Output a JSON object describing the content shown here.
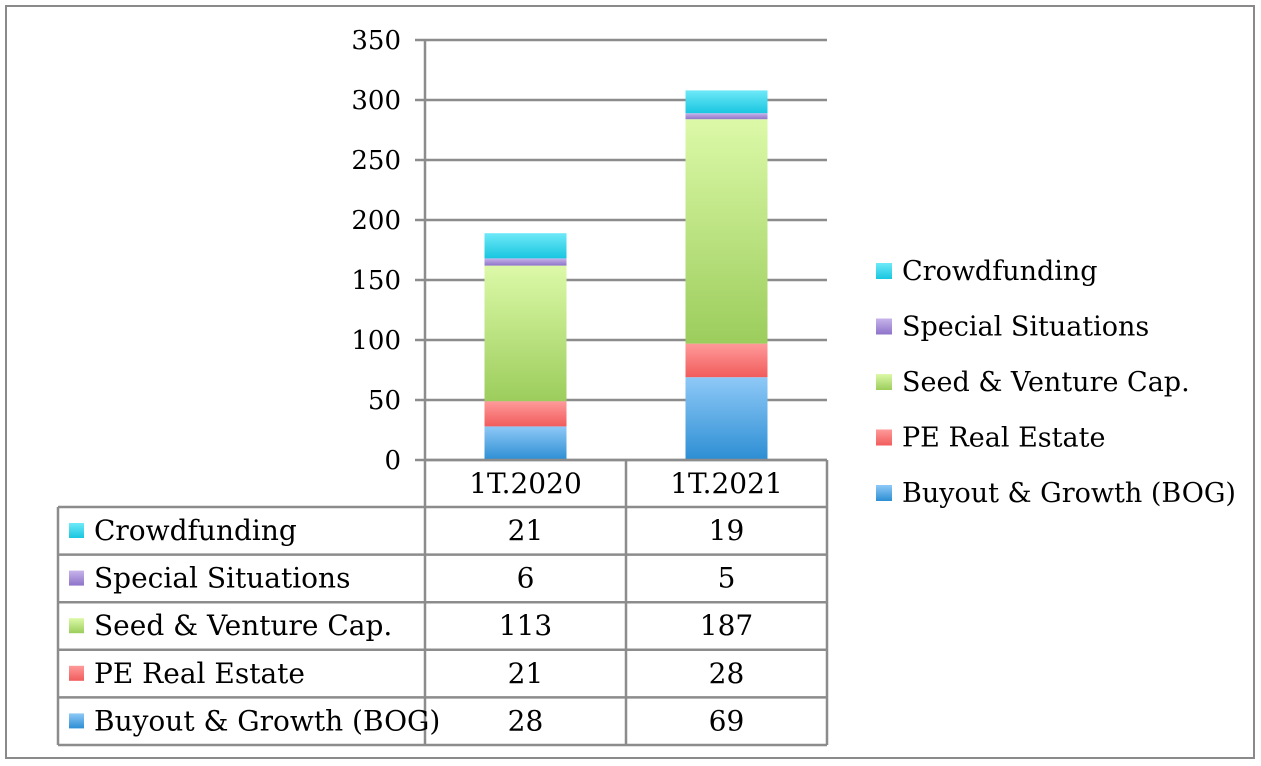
{
  "chart_data": {
    "type": "bar",
    "stacked": true,
    "categories": [
      "1T.2020",
      "1T.2021"
    ],
    "series": [
      {
        "name": "Buyout & Growth (BOG)",
        "values": [
          28,
          69
        ],
        "color_top": "#8ec9f7",
        "color_bottom": "#2d8ed3",
        "marker": "#3f9ee0"
      },
      {
        "name": "PE Real Estate",
        "values": [
          21,
          28
        ],
        "color_top": "#ff9a9a",
        "color_bottom": "#f15c5c",
        "marker": "#f26060"
      },
      {
        "name": "Seed & Venture Cap.",
        "values": [
          113,
          187
        ],
        "color_top": "#dcf9a8",
        "color_bottom": "#9ccd5c",
        "marker": "#b6e37f"
      },
      {
        "name": "Special Situations",
        "values": [
          6,
          5
        ],
        "color_top": "#c7b4ea",
        "color_bottom": "#8e73c9",
        "marker": "#9b82d2"
      },
      {
        "name": "Crowdfunding",
        "values": [
          21,
          19
        ],
        "color_top": "#6ee9f8",
        "color_bottom": "#19c6e0",
        "marker": "#22cbe3"
      }
    ],
    "yticks": [
      0,
      50,
      100,
      150,
      200,
      250,
      300,
      350
    ],
    "ylim": [
      0,
      350
    ],
    "grid": true,
    "legend_position": "right",
    "data_table": true
  }
}
